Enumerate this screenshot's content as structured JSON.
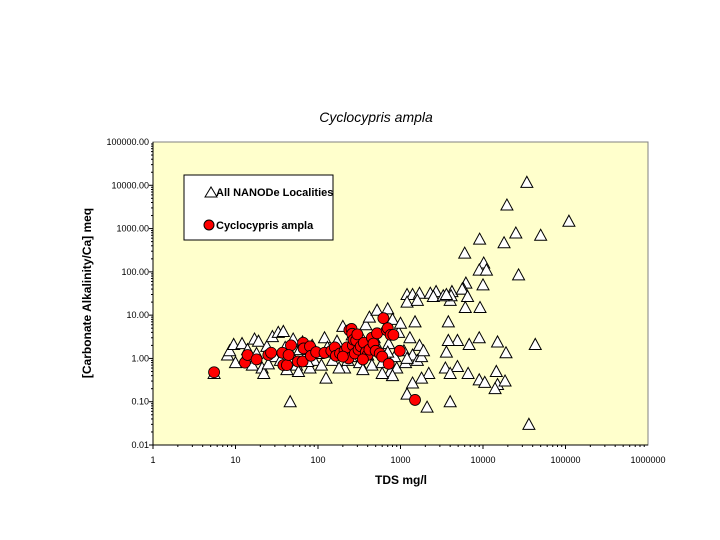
{
  "chart_data": {
    "type": "scatter",
    "title": "Cyclocypris ampla",
    "xlabel": "TDS  mg/l",
    "ylabel": "[Carbonate Alkalinity/Ca] meq",
    "xscale": "log",
    "yscale": "log",
    "xlim": [
      1,
      1000000
    ],
    "ylim": [
      0.01,
      100000
    ],
    "xticks": [
      "1",
      "10",
      "100",
      "1000",
      "10000",
      "100000",
      "1000000"
    ],
    "yticks": [
      "0.01",
      "0.10",
      "1.00",
      "10.00",
      "100.00",
      "1000.00",
      "10000.00",
      "100000.00"
    ],
    "grid": false,
    "legend_placement": "top-left",
    "colors": {
      "plot_background": "#FFFFCC",
      "triangle_fill": "#FFFFFF",
      "circle_fill": "#FF0000"
    },
    "series": [
      {
        "name": "All NANODe Localities",
        "marker": "triangle",
        "points": [
          [
            34000,
            11700
          ],
          [
            19500,
            3500
          ],
          [
            110000,
            1480
          ],
          [
            25000,
            790
          ],
          [
            50000,
            700
          ],
          [
            9100,
            570
          ],
          [
            18000,
            470
          ],
          [
            6000,
            270
          ],
          [
            10200,
            160
          ],
          [
            9000,
            110
          ],
          [
            11000,
            110
          ],
          [
            27000,
            85
          ],
          [
            10000,
            50
          ],
          [
            6200,
            55
          ],
          [
            5800,
            40
          ],
          [
            4200,
            35
          ],
          [
            4000,
            22
          ],
          [
            5600,
            40
          ],
          [
            6500,
            27
          ],
          [
            4100,
            28
          ],
          [
            9200,
            15
          ],
          [
            6100,
            15
          ],
          [
            3800,
            7
          ],
          [
            1200,
            30
          ],
          [
            1400,
            30
          ],
          [
            1700,
            32
          ],
          [
            2300,
            32
          ],
          [
            2700,
            35
          ],
          [
            2500,
            27
          ],
          [
            3300,
            28
          ],
          [
            1200,
            20
          ],
          [
            1600,
            22
          ],
          [
            3600,
            30
          ],
          [
            9000,
            3.0
          ],
          [
            6800,
            2.1
          ],
          [
            4900,
            2.6
          ],
          [
            3800,
            2.6
          ],
          [
            15000,
            2.4
          ],
          [
            43000,
            2.1
          ],
          [
            19000,
            1.35
          ],
          [
            3600,
            1.4
          ],
          [
            3500,
            0.6
          ],
          [
            4900,
            0.65
          ],
          [
            6600,
            0.45
          ],
          [
            4000,
            0.45
          ],
          [
            9000,
            0.32
          ],
          [
            10500,
            0.28
          ],
          [
            14500,
            0.5
          ],
          [
            15000,
            0.25
          ],
          [
            18500,
            0.3
          ],
          [
            14000,
            0.2
          ],
          [
            2200,
            0.45
          ],
          [
            1800,
            0.35
          ],
          [
            1400,
            0.27
          ],
          [
            1200,
            0.15
          ],
          [
            2100,
            0.075
          ],
          [
            4000,
            0.1
          ],
          [
            36000,
            0.03
          ],
          [
            46,
            0.1
          ],
          [
            5.5,
            0.45
          ],
          [
            8,
            1.2
          ],
          [
            8.5,
            1.5
          ],
          [
            9.5,
            2.1
          ],
          [
            10,
            0.8
          ],
          [
            12,
            2.2
          ],
          [
            14,
            1.6
          ],
          [
            16,
            0.7
          ],
          [
            17,
            2.8
          ],
          [
            19,
            2.5
          ],
          [
            21,
            0.6
          ],
          [
            22,
            0.45
          ],
          [
            24,
            1.9
          ],
          [
            28,
            3.2
          ],
          [
            30,
            1.1
          ],
          [
            33,
            4.0
          ],
          [
            38,
            4.2
          ],
          [
            35,
            0.9
          ],
          [
            42,
            0.55
          ],
          [
            45,
            1.5
          ],
          [
            50,
            2.8
          ],
          [
            55,
            0.7
          ],
          [
            58,
            0.5
          ],
          [
            65,
            2.4
          ],
          [
            70,
            1.1
          ],
          [
            80,
            0.6
          ],
          [
            85,
            2.0
          ],
          [
            90,
            0.9
          ],
          [
            100,
            1.3
          ],
          [
            110,
            0.7
          ],
          [
            120,
            3.0
          ],
          [
            125,
            0.35
          ],
          [
            130,
            1.8
          ],
          [
            150,
            0.9
          ],
          [
            170,
            2.5
          ],
          [
            190,
            1.2
          ],
          [
            200,
            5.5
          ],
          [
            210,
            0.6
          ],
          [
            230,
            0.9
          ],
          [
            260,
            3.5
          ],
          [
            300,
            1.5
          ],
          [
            320,
            0.8
          ],
          [
            350,
            2.7
          ],
          [
            380,
            6.0
          ],
          [
            400,
            1.2
          ],
          [
            420,
            9.0
          ],
          [
            450,
            0.7
          ],
          [
            480,
            3.0
          ],
          [
            520,
            13
          ],
          [
            550,
            1.6
          ],
          [
            600,
            0.8
          ],
          [
            650,
            5
          ],
          [
            700,
            14
          ],
          [
            720,
            2.2
          ],
          [
            750,
            0.5
          ],
          [
            800,
            8
          ],
          [
            850,
            1.1
          ],
          [
            900,
            0.6
          ],
          [
            950,
            4
          ],
          [
            1000,
            6.5
          ],
          [
            1100,
            1.5
          ],
          [
            1150,
            0.8
          ],
          [
            1300,
            3
          ],
          [
            1400,
            1.2
          ],
          [
            1500,
            7
          ],
          [
            1600,
            0.9
          ],
          [
            1700,
            2.0
          ],
          [
            1800,
            1.1
          ],
          [
            1900,
            1.5
          ],
          [
            800,
            0.4
          ],
          [
            600,
            0.45
          ],
          [
            350,
            0.55
          ],
          [
            180,
            0.6
          ],
          [
            75,
            0.85
          ],
          [
            25,
            0.75
          ],
          [
            13,
            1.0
          ],
          [
            18,
            1.3
          ],
          [
            40,
            1.8
          ],
          [
            60,
            1.6
          ],
          [
            140,
            1.4
          ],
          [
            250,
            1.1
          ],
          [
            500,
            1.9
          ],
          [
            700,
            1.4
          ],
          [
            1200,
            1.0
          ]
        ]
      },
      {
        "name": "Cyclocypris ampla",
        "marker": "circle",
        "points": [
          [
            5.5,
            0.48
          ],
          [
            13,
            0.8
          ],
          [
            14,
            1.2
          ],
          [
            18,
            0.95
          ],
          [
            25,
            1.2
          ],
          [
            27,
            1.35
          ],
          [
            37,
            1.35
          ],
          [
            38,
            0.7
          ],
          [
            42,
            0.7
          ],
          [
            47,
            2.0
          ],
          [
            44,
            1.2
          ],
          [
            57,
            0.85
          ],
          [
            65,
            0.85
          ],
          [
            66,
            2.3
          ],
          [
            67,
            1.7
          ],
          [
            80,
            1.9
          ],
          [
            82,
            1.15
          ],
          [
            95,
            1.4
          ],
          [
            120,
            1.35
          ],
          [
            145,
            1.5
          ],
          [
            160,
            1.8
          ],
          [
            165,
            1.15
          ],
          [
            185,
            1.3
          ],
          [
            210,
            1.5
          ],
          [
            225,
            1.8
          ],
          [
            235,
            1.0
          ],
          [
            240,
            4.5
          ],
          [
            255,
            4.8
          ],
          [
            260,
            3.7
          ],
          [
            265,
            2.0
          ],
          [
            270,
            2.7
          ],
          [
            280,
            1.3
          ],
          [
            290,
            2.6
          ],
          [
            300,
            3.6
          ],
          [
            310,
            1.6
          ],
          [
            330,
            1.9
          ],
          [
            360,
            2.3
          ],
          [
            380,
            1.4
          ],
          [
            400,
            1.2
          ],
          [
            420,
            1.6
          ],
          [
            450,
            3.0
          ],
          [
            470,
            2.2
          ],
          [
            500,
            1.5
          ],
          [
            520,
            3.8
          ],
          [
            560,
            1.3
          ],
          [
            600,
            1.1
          ],
          [
            620,
            8.5
          ],
          [
            680,
            4.5
          ],
          [
            700,
            5.0
          ],
          [
            720,
            0.75
          ],
          [
            760,
            3.5
          ],
          [
            820,
            3.5
          ],
          [
            980,
            1.5
          ],
          [
            1500,
            0.11
          ],
          [
            200,
            1.1
          ],
          [
            350,
            0.95
          ]
        ]
      }
    ]
  }
}
